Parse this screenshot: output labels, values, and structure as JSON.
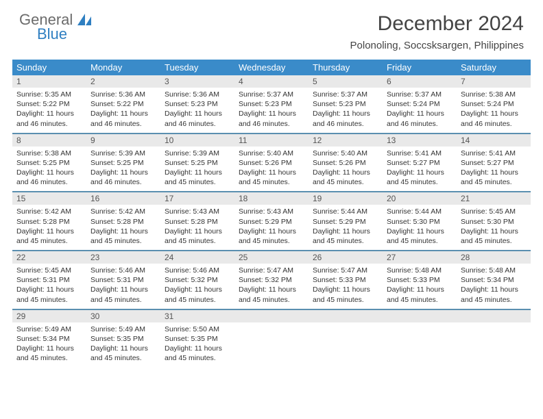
{
  "logo": {
    "general": "General",
    "blue": "Blue"
  },
  "title": "December 2024",
  "location": "Polonoling, Soccsksargen, Philippines",
  "weekdays": [
    "Sunday",
    "Monday",
    "Tuesday",
    "Wednesday",
    "Thursday",
    "Friday",
    "Saturday"
  ],
  "colors": {
    "header_bar": "#3a8bc9",
    "daynum_bg": "#e9e9e9",
    "week_divider": "#5a8fb0",
    "logo_blue": "#2f7fc1",
    "logo_gray": "#6b6b6b"
  },
  "weeks": [
    [
      {
        "n": "1",
        "sr": "5:35 AM",
        "ss": "5:22 PM",
        "dl": "11 hours and 46 minutes."
      },
      {
        "n": "2",
        "sr": "5:36 AM",
        "ss": "5:22 PM",
        "dl": "11 hours and 46 minutes."
      },
      {
        "n": "3",
        "sr": "5:36 AM",
        "ss": "5:23 PM",
        "dl": "11 hours and 46 minutes."
      },
      {
        "n": "4",
        "sr": "5:37 AM",
        "ss": "5:23 PM",
        "dl": "11 hours and 46 minutes."
      },
      {
        "n": "5",
        "sr": "5:37 AM",
        "ss": "5:23 PM",
        "dl": "11 hours and 46 minutes."
      },
      {
        "n": "6",
        "sr": "5:37 AM",
        "ss": "5:24 PM",
        "dl": "11 hours and 46 minutes."
      },
      {
        "n": "7",
        "sr": "5:38 AM",
        "ss": "5:24 PM",
        "dl": "11 hours and 46 minutes."
      }
    ],
    [
      {
        "n": "8",
        "sr": "5:38 AM",
        "ss": "5:25 PM",
        "dl": "11 hours and 46 minutes."
      },
      {
        "n": "9",
        "sr": "5:39 AM",
        "ss": "5:25 PM",
        "dl": "11 hours and 46 minutes."
      },
      {
        "n": "10",
        "sr": "5:39 AM",
        "ss": "5:25 PM",
        "dl": "11 hours and 45 minutes."
      },
      {
        "n": "11",
        "sr": "5:40 AM",
        "ss": "5:26 PM",
        "dl": "11 hours and 45 minutes."
      },
      {
        "n": "12",
        "sr": "5:40 AM",
        "ss": "5:26 PM",
        "dl": "11 hours and 45 minutes."
      },
      {
        "n": "13",
        "sr": "5:41 AM",
        "ss": "5:27 PM",
        "dl": "11 hours and 45 minutes."
      },
      {
        "n": "14",
        "sr": "5:41 AM",
        "ss": "5:27 PM",
        "dl": "11 hours and 45 minutes."
      }
    ],
    [
      {
        "n": "15",
        "sr": "5:42 AM",
        "ss": "5:28 PM",
        "dl": "11 hours and 45 minutes."
      },
      {
        "n": "16",
        "sr": "5:42 AM",
        "ss": "5:28 PM",
        "dl": "11 hours and 45 minutes."
      },
      {
        "n": "17",
        "sr": "5:43 AM",
        "ss": "5:28 PM",
        "dl": "11 hours and 45 minutes."
      },
      {
        "n": "18",
        "sr": "5:43 AM",
        "ss": "5:29 PM",
        "dl": "11 hours and 45 minutes."
      },
      {
        "n": "19",
        "sr": "5:44 AM",
        "ss": "5:29 PM",
        "dl": "11 hours and 45 minutes."
      },
      {
        "n": "20",
        "sr": "5:44 AM",
        "ss": "5:30 PM",
        "dl": "11 hours and 45 minutes."
      },
      {
        "n": "21",
        "sr": "5:45 AM",
        "ss": "5:30 PM",
        "dl": "11 hours and 45 minutes."
      }
    ],
    [
      {
        "n": "22",
        "sr": "5:45 AM",
        "ss": "5:31 PM",
        "dl": "11 hours and 45 minutes."
      },
      {
        "n": "23",
        "sr": "5:46 AM",
        "ss": "5:31 PM",
        "dl": "11 hours and 45 minutes."
      },
      {
        "n": "24",
        "sr": "5:46 AM",
        "ss": "5:32 PM",
        "dl": "11 hours and 45 minutes."
      },
      {
        "n": "25",
        "sr": "5:47 AM",
        "ss": "5:32 PM",
        "dl": "11 hours and 45 minutes."
      },
      {
        "n": "26",
        "sr": "5:47 AM",
        "ss": "5:33 PM",
        "dl": "11 hours and 45 minutes."
      },
      {
        "n": "27",
        "sr": "5:48 AM",
        "ss": "5:33 PM",
        "dl": "11 hours and 45 minutes."
      },
      {
        "n": "28",
        "sr": "5:48 AM",
        "ss": "5:34 PM",
        "dl": "11 hours and 45 minutes."
      }
    ],
    [
      {
        "n": "29",
        "sr": "5:49 AM",
        "ss": "5:34 PM",
        "dl": "11 hours and 45 minutes."
      },
      {
        "n": "30",
        "sr": "5:49 AM",
        "ss": "5:35 PM",
        "dl": "11 hours and 45 minutes."
      },
      {
        "n": "31",
        "sr": "5:50 AM",
        "ss": "5:35 PM",
        "dl": "11 hours and 45 minutes."
      },
      null,
      null,
      null,
      null
    ]
  ],
  "labels": {
    "sunrise": "Sunrise: ",
    "sunset": "Sunset: ",
    "daylight": "Daylight: "
  }
}
